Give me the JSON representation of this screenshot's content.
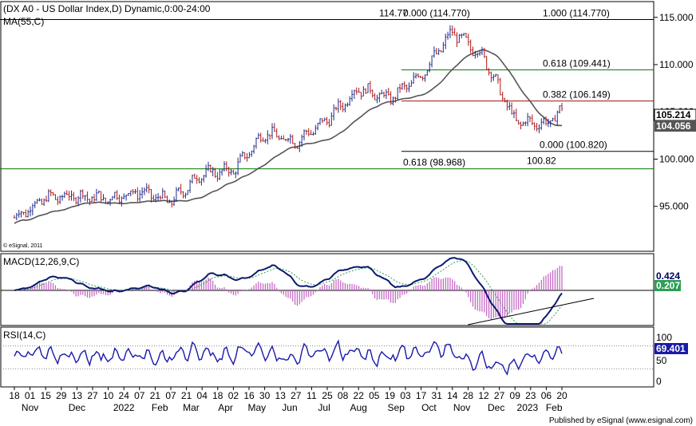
{
  "chart_data": {
    "type": "candlestick",
    "title": "(DX A0 - US Dollar Index,D) Dynamic,0:00-24:00",
    "overlay_label": "MA(55,C)",
    "copyright": "© eSignal, 2011",
    "publisher": "Published by eSignal (www.esignal.com)",
    "price_axis": {
      "ticks": [
        {
          "v": 115,
          "t": "115.000"
        },
        {
          "v": 110,
          "t": "110.000"
        },
        {
          "v": 105,
          "t": "105.000"
        },
        {
          "v": 100,
          "t": "100.000"
        },
        {
          "v": 95,
          "t": "95.000"
        }
      ],
      "last_price": "105.214",
      "ma_value": "104.056",
      "ylim": [
        90.5,
        116.5
      ]
    },
    "date_labels": [
      "18",
      "01",
      "15",
      "29",
      "13",
      "27",
      "10",
      "24",
      "07",
      "21",
      "07",
      "21",
      "04",
      "18",
      "02",
      "16",
      "30",
      "13",
      "27",
      "11",
      "25",
      "08",
      "22",
      "05",
      "19",
      "03",
      "17",
      "31",
      "14",
      "28",
      "12",
      "27",
      "09",
      "23",
      "06",
      "20"
    ],
    "month_labels": [
      {
        "t": "Nov",
        "i": 1
      },
      {
        "t": "Dec",
        "i": 4
      },
      {
        "t": "2022",
        "i": 7
      },
      {
        "t": "Feb",
        "i": 9.3
      },
      {
        "t": "Mar",
        "i": 11.3
      },
      {
        "t": "Apr",
        "i": 13.5
      },
      {
        "t": "May",
        "i": 15.5
      },
      {
        "t": "Jun",
        "i": 17.6
      },
      {
        "t": "Jul",
        "i": 19.8
      },
      {
        "t": "Aug",
        "i": 22
      },
      {
        "t": "Sep",
        "i": 24.4
      },
      {
        "t": "Oct",
        "i": 26.5
      },
      {
        "t": "Nov",
        "i": 28.6
      },
      {
        "t": "Dec",
        "i": 30.8
      },
      {
        "t": "2023",
        "i": 32.8
      },
      {
        "t": "Feb",
        "i": 34.5
      }
    ],
    "fib_levels": [
      {
        "label": "114.77",
        "value": 114.77,
        "color": "#000000",
        "pos": "peak"
      },
      {
        "label": "0.000 (114.770)",
        "value": 114.77,
        "color": "#000000"
      },
      {
        "label": "1.000 (114.770)",
        "value": 114.77,
        "color": "#000000"
      },
      {
        "label": "0.618 (109.441)",
        "value": 109.441,
        "color": "#007a00"
      },
      {
        "label": "0.382 (106.149)",
        "value": 106.149,
        "color": "#9b1111"
      },
      {
        "label": "0.000 (100.820)",
        "value": 100.82,
        "color": "#000000"
      },
      {
        "label": "100.82",
        "value": 100.82,
        "color": "#000000",
        "pos": "trough"
      },
      {
        "label": "0.618 (98.968)",
        "value": 98.968,
        "color": "#007a00"
      }
    ],
    "price_series": {
      "x_index": [
        0,
        2,
        4,
        6,
        8,
        10,
        12,
        14,
        16,
        18,
        20,
        22,
        24,
        26,
        28,
        30,
        32,
        34,
        35
      ],
      "close": [
        93.8,
        95.9,
        96.1,
        95.8,
        96.6,
        95.5,
        98.5,
        98.8,
        102.8,
        101.8,
        104.2,
        107.5,
        106.4,
        108.9,
        113.5,
        110.8,
        104.0,
        103.7,
        105.2
      ]
    },
    "macd": {
      "title": "MACD(12,26,9,C)",
      "values": [
        "0.424",
        "0.207"
      ]
    },
    "rsi": {
      "title": "RSI(14,C)",
      "value": "69.401",
      "ticks": [
        "100",
        "50",
        "0"
      ]
    }
  }
}
